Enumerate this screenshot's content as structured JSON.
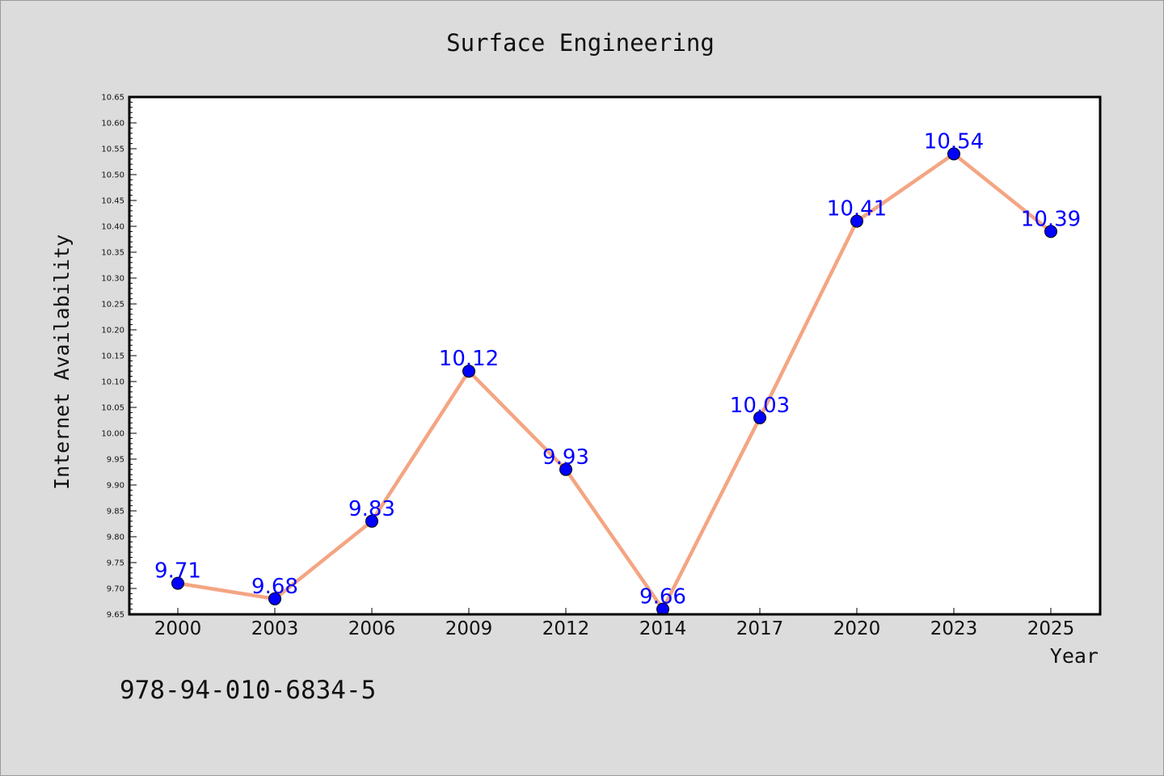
{
  "isbn": "978-94-010-6834-5",
  "chart_data": {
    "type": "line",
    "title": "Surface Engineering",
    "xlabel": "Year",
    "ylabel": "Internet Availability",
    "categories": [
      "2000",
      "2003",
      "2006",
      "2009",
      "2012",
      "2014",
      "2017",
      "2020",
      "2023",
      "2025"
    ],
    "values": [
      9.71,
      9.68,
      9.83,
      10.12,
      9.93,
      9.66,
      10.03,
      10.41,
      10.54,
      10.39
    ],
    "data_labels": [
      "9.71",
      "9.68",
      "9.83",
      "10.12",
      "9.93",
      "9.66",
      "10.03",
      "10.41",
      "10.54",
      "10.39"
    ],
    "ylim": [
      9.65,
      10.65
    ],
    "yticks": [
      "9.65",
      "9.70",
      "9.75",
      "9.80",
      "9.85",
      "9.90",
      "9.95",
      "10.00",
      "10.05",
      "10.10",
      "10.15",
      "10.20",
      "10.25",
      "10.30",
      "10.35",
      "10.40",
      "10.45",
      "10.50",
      "10.55",
      "10.60",
      "10.65"
    ],
    "grid": false,
    "line_color": "#f4a582",
    "marker_color": "#0000ff",
    "label_color": "#0000ff",
    "background": "#dcdcdc",
    "plot_background": "#ffffff"
  }
}
